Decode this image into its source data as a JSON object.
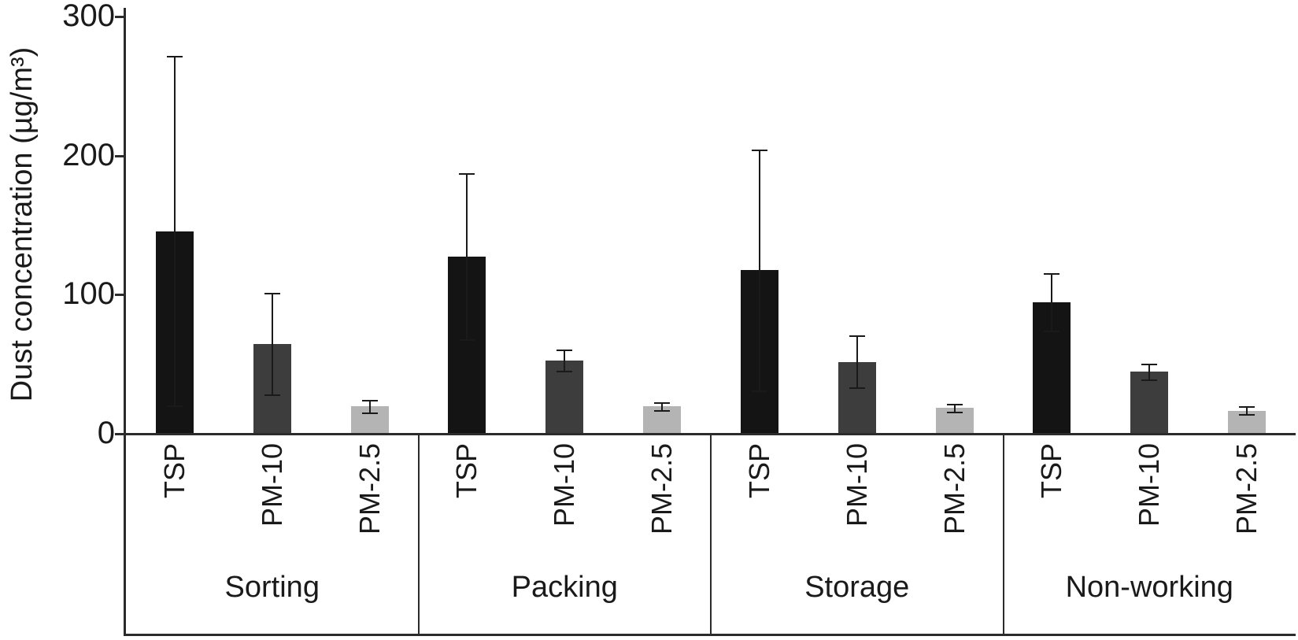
{
  "chart_data": {
    "type": "bar",
    "title": "",
    "ylabel": "Dust concentration (µg/m³)",
    "xlabel": "",
    "ylim": [
      0,
      300
    ],
    "yticks": [
      0,
      100,
      200,
      300
    ],
    "grid": false,
    "legend": "none",
    "groups": [
      "Sorting",
      "Packing",
      "Storage",
      "Non-working"
    ],
    "bar_labels": [
      "TSP",
      "PM-10",
      "PM-2.5"
    ],
    "bar_colors": [
      "#141414",
      "#3d3d3d",
      "#b4b4b4"
    ],
    "axis_color": "#2b2b2b",
    "error_color": "#1a1a1a",
    "values": [
      [
        145,
        64,
        19
      ],
      [
        127,
        52,
        19
      ],
      [
        117,
        51,
        18
      ],
      [
        94,
        44,
        16
      ]
    ],
    "errors": [
      [
        126,
        37,
        5
      ],
      [
        60,
        8,
        3
      ],
      [
        87,
        19,
        3
      ],
      [
        21,
        6,
        3
      ]
    ]
  }
}
